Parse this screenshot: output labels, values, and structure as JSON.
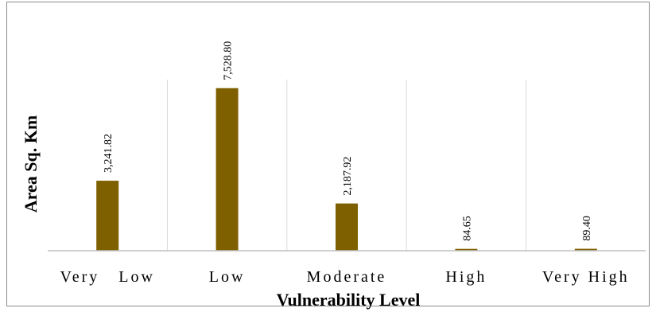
{
  "chart_data": {
    "type": "bar",
    "title": "",
    "xlabel": "Vulnerability Level",
    "ylabel": "Area Sq. Km",
    "categories": [
      "Very   Low",
      "Low",
      "Moderate",
      "High",
      "Very High"
    ],
    "values": [
      3241.82,
      7528.8,
      2187.92,
      84.65,
      89.4
    ],
    "value_labels": [
      "3,241.82",
      "7,528.80",
      "2,187.92",
      "84.65",
      "89.40"
    ],
    "ylim": [
      0,
      9400
    ],
    "grid": "vertical",
    "legend": "none",
    "bar_color": "#7f6000",
    "grid_color": "#d9d9d9",
    "axis_color": "#bfbfbf"
  }
}
